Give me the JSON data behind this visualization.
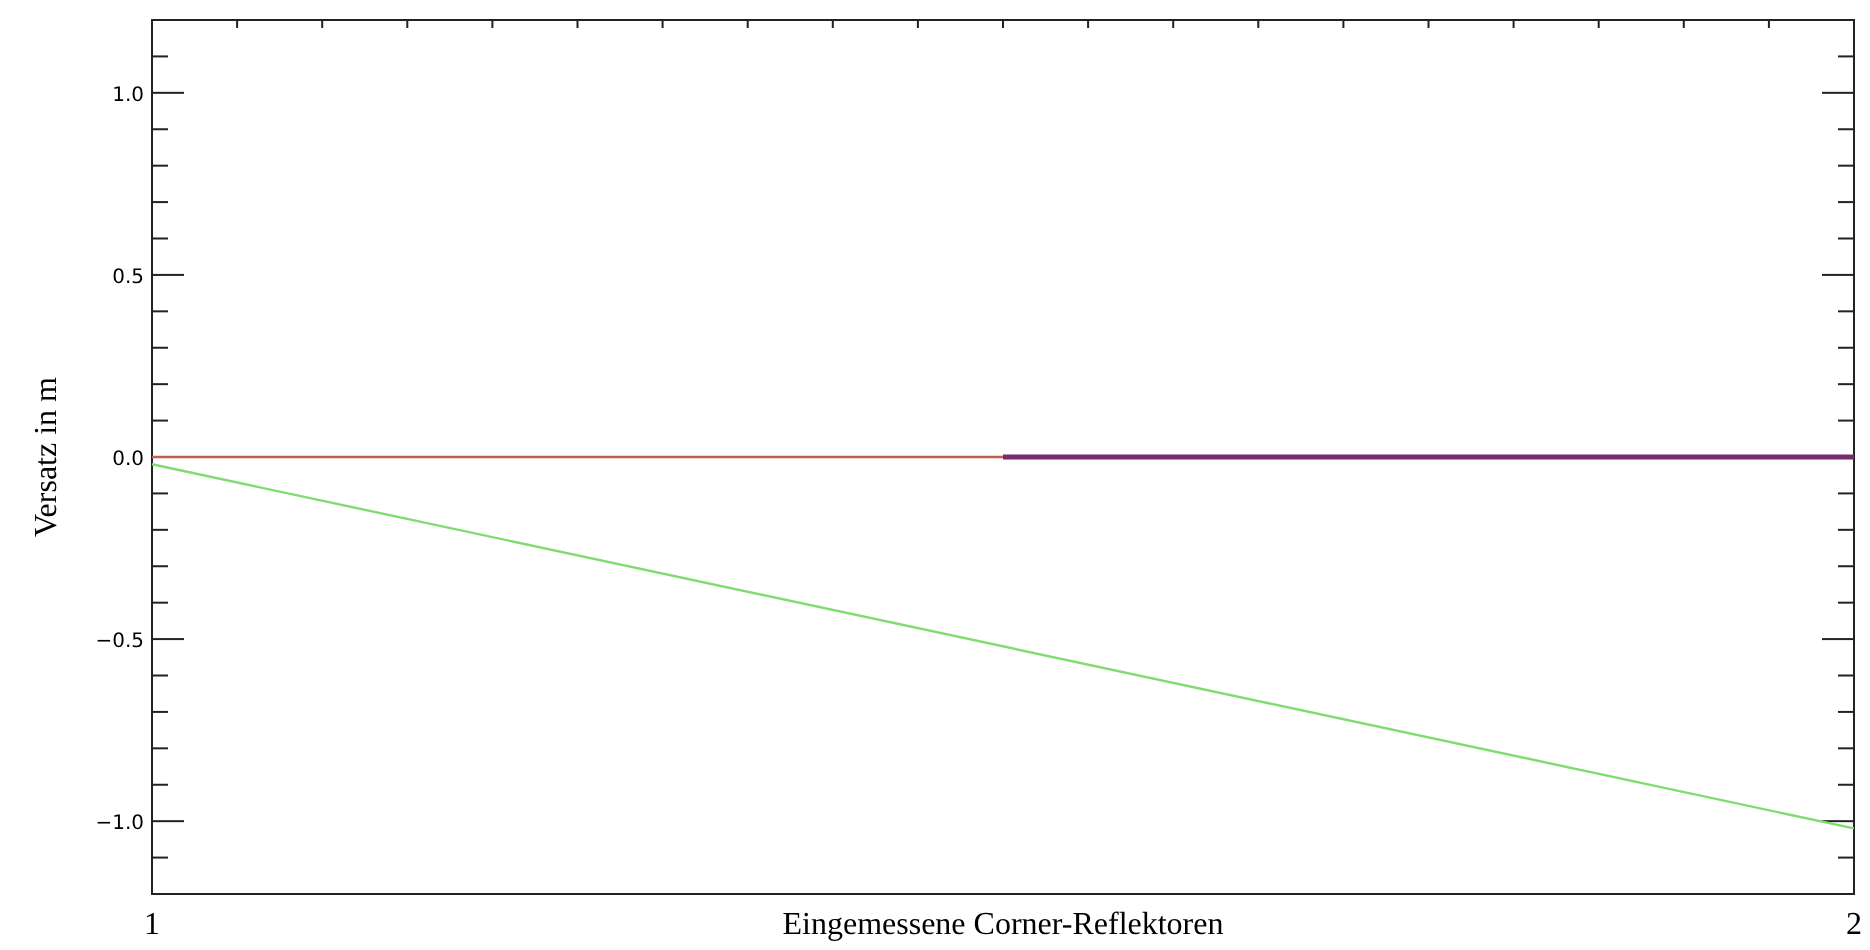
{
  "chart_data": {
    "type": "line",
    "xlabel": "Eingemessene Corner-Reflektoren",
    "ylabel": "Versatz in m",
    "xlim": [
      1,
      2
    ],
    "ylim": [
      -1.2,
      1.2
    ],
    "xticks": [
      {
        "value": 1,
        "label": "1"
      },
      {
        "value": 1.05,
        "label": null
      },
      {
        "value": 1.1,
        "label": null
      },
      {
        "value": 1.15,
        "label": null
      },
      {
        "value": 1.2,
        "label": null
      },
      {
        "value": 1.25,
        "label": null
      },
      {
        "value": 1.3,
        "label": null
      },
      {
        "value": 1.35,
        "label": null
      },
      {
        "value": 1.4,
        "label": null
      },
      {
        "value": 1.45,
        "label": null
      },
      {
        "value": 1.5,
        "label": null
      },
      {
        "value": 1.55,
        "label": null
      },
      {
        "value": 1.6,
        "label": null
      },
      {
        "value": 1.65,
        "label": null
      },
      {
        "value": 1.7,
        "label": null
      },
      {
        "value": 1.75,
        "label": null
      },
      {
        "value": 1.8,
        "label": null
      },
      {
        "value": 1.85,
        "label": null
      },
      {
        "value": 1.9,
        "label": null
      },
      {
        "value": 1.95,
        "label": null
      },
      {
        "value": 2,
        "label": "2"
      }
    ],
    "yticks": [
      {
        "value": -1.1,
        "label": null
      },
      {
        "value": -1.0,
        "label": "−1.0"
      },
      {
        "value": -0.9,
        "label": null
      },
      {
        "value": -0.8,
        "label": null
      },
      {
        "value": -0.7,
        "label": null
      },
      {
        "value": -0.6,
        "label": null
      },
      {
        "value": -0.5,
        "label": "−0.5"
      },
      {
        "value": -0.4,
        "label": null
      },
      {
        "value": -0.3,
        "label": null
      },
      {
        "value": -0.2,
        "label": null
      },
      {
        "value": -0.1,
        "label": null
      },
      {
        "value": 0,
        "label": "0.0"
      },
      {
        "value": 0.1,
        "label": null
      },
      {
        "value": 0.2,
        "label": null
      },
      {
        "value": 0.3,
        "label": null
      },
      {
        "value": 0.4,
        "label": null
      },
      {
        "value": 0.5,
        "label": "0.5"
      },
      {
        "value": 0.6,
        "label": null
      },
      {
        "value": 0.7,
        "label": null
      },
      {
        "value": 0.8,
        "label": null
      },
      {
        "value": 0.9,
        "label": null
      },
      {
        "value": 1.0,
        "label": "1.0"
      },
      {
        "value": 1.1,
        "label": null
      }
    ],
    "grid": false,
    "marker": "none",
    "line_style": "solid",
    "series": [
      {
        "color": "#c0604a",
        "x": [
          1,
          1.5
        ],
        "values": [
          0,
          0
        ]
      },
      {
        "color": "#7a2a6e",
        "x": [
          1.5,
          2
        ],
        "values": [
          0,
          0
        ]
      },
      {
        "color": "#7fdc6f",
        "x": [
          1,
          2
        ],
        "values": [
          -0.02,
          -1.02
        ]
      }
    ]
  }
}
